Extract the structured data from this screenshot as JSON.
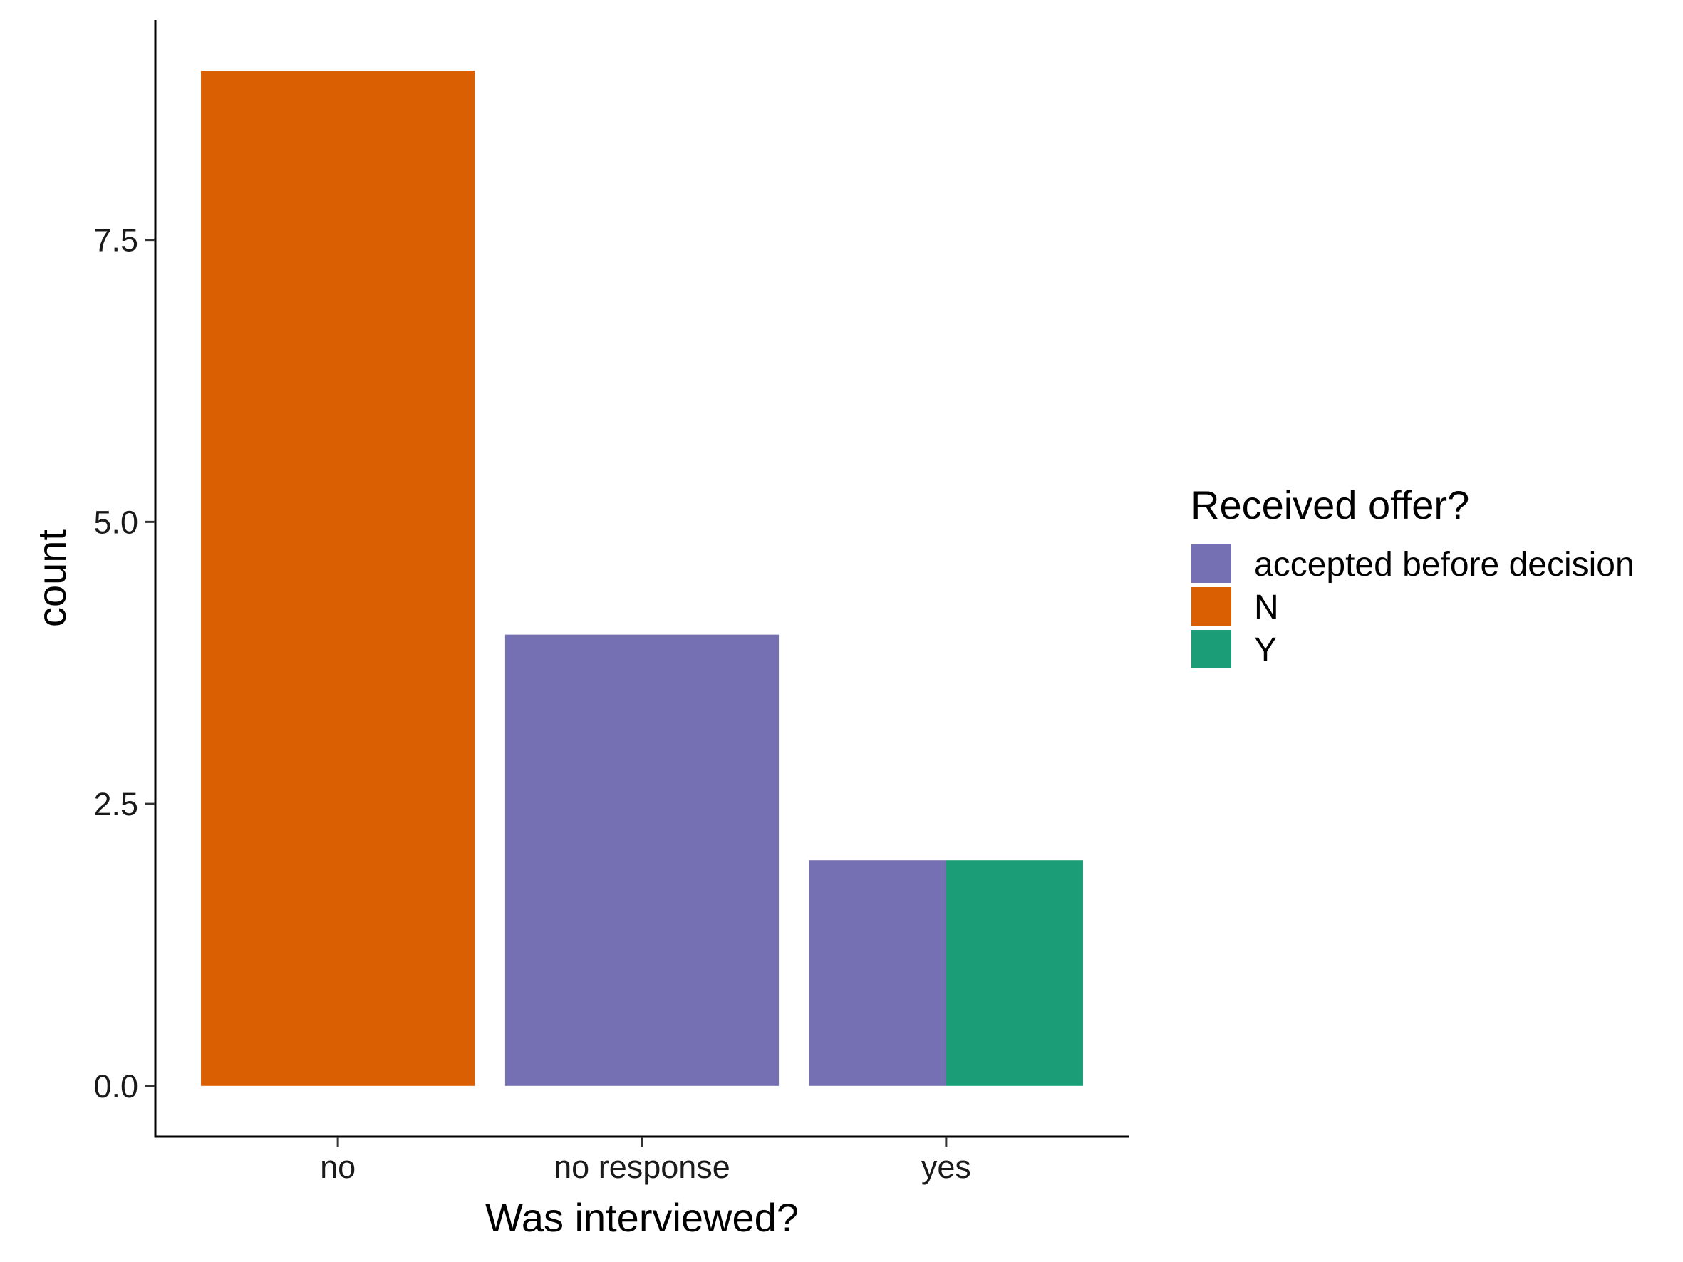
{
  "chart_data": {
    "type": "bar",
    "stacking": "dodge",
    "xlabel": "Was interviewed?",
    "ylabel": "count",
    "ylim": [
      -0.45,
      9.45
    ],
    "yticks": [
      0.0,
      2.5,
      5.0,
      7.5
    ],
    "ytick_labels": [
      "0.0",
      "2.5",
      "5.0",
      "7.5"
    ],
    "categories": [
      "no",
      "no response",
      "yes"
    ],
    "legend": {
      "title": "Received offer?",
      "placement": "right"
    },
    "series": [
      {
        "name": "accepted before decision",
        "color": "#7570B3",
        "values": [
          null,
          4,
          2
        ]
      },
      {
        "name": "N",
        "color": "#D95F02",
        "values": [
          9,
          null,
          null
        ]
      },
      {
        "name": "Y",
        "color": "#1B9E77",
        "values": [
          null,
          null,
          2
        ]
      }
    ],
    "grid": false
  }
}
